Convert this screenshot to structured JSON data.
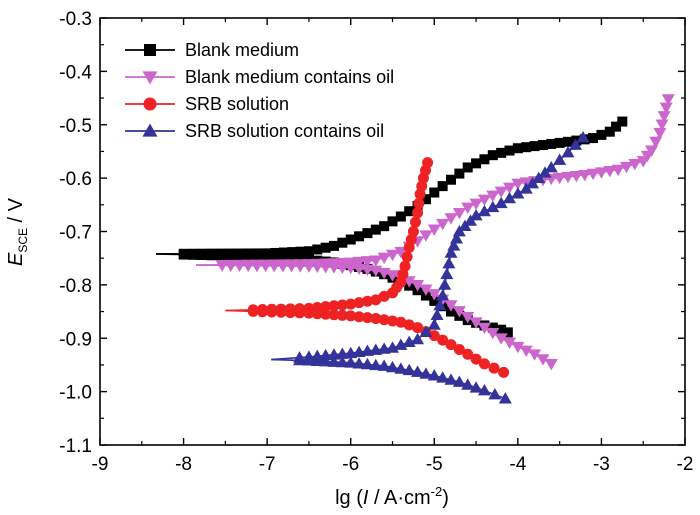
{
  "chart_data": {
    "type": "line",
    "title": "",
    "xlabel": "lg (I / A·cm⁻²)",
    "xlabel_parts": {
      "pre": "lg (",
      "var": "I",
      "unit": " / A·cm",
      "exp": "-2",
      "post": ")"
    },
    "ylabel": "E_SCE / V",
    "ylabel_parts": {
      "var": "E",
      "sub": "SCE",
      "unit": " / V"
    },
    "xlim": [
      -9,
      -2
    ],
    "ylim": [
      -1.1,
      -0.3
    ],
    "xticks": [
      -9,
      -8,
      -7,
      -6,
      -5,
      -4,
      -3,
      -2
    ],
    "xtick_labels": [
      "-9",
      "-8",
      "-7",
      "-6",
      "-5",
      "-4",
      "-3",
      "-2"
    ],
    "yticks": [
      -1.1,
      -1.0,
      -0.9,
      -0.8,
      -0.7,
      -0.6,
      -0.5,
      -0.4,
      -0.3
    ],
    "ytick_labels": [
      "-1.1",
      "-1.0",
      "-0.9",
      "-0.8",
      "-0.7",
      "-0.6",
      "-0.5",
      "-0.4",
      "-0.3"
    ],
    "grid": false,
    "legend_position": "top-left",
    "series": [
      {
        "name": "Blank medium",
        "color": "#000000",
        "marker": "square",
        "anodic": [
          [
            -8.33,
            -0.742
          ],
          [
            -7,
            -0.741
          ],
          [
            -6.5,
            -0.737
          ],
          [
            -6.2,
            -0.727
          ],
          [
            -6.0,
            -0.715
          ],
          [
            -5.8,
            -0.703
          ],
          [
            -5.6,
            -0.69
          ],
          [
            -5.4,
            -0.672
          ],
          [
            -5.2,
            -0.652
          ],
          [
            -5.0,
            -0.627
          ],
          [
            -4.8,
            -0.603
          ],
          [
            -4.6,
            -0.58
          ],
          [
            -4.3,
            -0.557
          ],
          [
            -4.0,
            -0.544
          ],
          [
            -3.7,
            -0.538
          ],
          [
            -3.4,
            -0.532
          ],
          [
            -3.1,
            -0.525
          ],
          [
            -2.9,
            -0.513
          ],
          [
            -2.75,
            -0.494
          ]
        ],
        "cathodic": [
          [
            -8.33,
            -0.742
          ],
          [
            -7,
            -0.747
          ],
          [
            -6.5,
            -0.753
          ],
          [
            -6.2,
            -0.758
          ],
          [
            -6.0,
            -0.763
          ],
          [
            -5.8,
            -0.77
          ],
          [
            -5.6,
            -0.78
          ],
          [
            -5.4,
            -0.793
          ],
          [
            -5.2,
            -0.81
          ],
          [
            -5.0,
            -0.83
          ],
          [
            -4.8,
            -0.85
          ],
          [
            -4.6,
            -0.866
          ],
          [
            -4.4,
            -0.876
          ],
          [
            -4.2,
            -0.884
          ],
          [
            -4.12,
            -0.889
          ]
        ]
      },
      {
        "name": "Blank medium contains oil",
        "color": "#cc66cc",
        "marker": "triangle-down",
        "anodic": [
          [
            -7.85,
            -0.763
          ],
          [
            -6.5,
            -0.761
          ],
          [
            -6.0,
            -0.758
          ],
          [
            -5.7,
            -0.754
          ],
          [
            -5.4,
            -0.738
          ],
          [
            -5.2,
            -0.718
          ],
          [
            -5.0,
            -0.696
          ],
          [
            -4.8,
            -0.675
          ],
          [
            -4.6,
            -0.655
          ],
          [
            -4.4,
            -0.64
          ],
          [
            -4.2,
            -0.625
          ],
          [
            -4.0,
            -0.61
          ],
          [
            -3.6,
            -0.601
          ],
          [
            -3.2,
            -0.594
          ],
          [
            -2.8,
            -0.584
          ],
          [
            -2.5,
            -0.568
          ],
          [
            -2.4,
            -0.548
          ],
          [
            -2.3,
            -0.515
          ],
          [
            -2.2,
            -0.452
          ]
        ],
        "cathodic": [
          [
            -7.85,
            -0.763
          ],
          [
            -6.5,
            -0.765
          ],
          [
            -6.0,
            -0.768
          ],
          [
            -5.7,
            -0.773
          ],
          [
            -5.4,
            -0.786
          ],
          [
            -5.2,
            -0.8
          ],
          [
            -5.0,
            -0.817
          ],
          [
            -4.8,
            -0.838
          ],
          [
            -4.6,
            -0.86
          ],
          [
            -4.4,
            -0.88
          ],
          [
            -4.2,
            -0.9
          ],
          [
            -4.0,
            -0.916
          ],
          [
            -3.8,
            -0.93
          ],
          [
            -3.6,
            -0.948
          ]
        ]
      },
      {
        "name": "SRB solution",
        "color": "#ee2222",
        "marker": "circle",
        "anodic": [
          [
            -7.5,
            -0.848
          ],
          [
            -6.5,
            -0.844
          ],
          [
            -6.0,
            -0.836
          ],
          [
            -5.7,
            -0.828
          ],
          [
            -5.5,
            -0.815
          ],
          [
            -5.4,
            -0.795
          ],
          [
            -5.35,
            -0.765
          ],
          [
            -5.3,
            -0.73
          ],
          [
            -5.25,
            -0.7
          ],
          [
            -5.2,
            -0.665
          ],
          [
            -5.17,
            -0.63
          ],
          [
            -5.13,
            -0.6
          ],
          [
            -5.08,
            -0.571
          ]
        ],
        "cathodic": [
          [
            -7.5,
            -0.848
          ],
          [
            -6.5,
            -0.853
          ],
          [
            -6.0,
            -0.858
          ],
          [
            -5.7,
            -0.863
          ],
          [
            -5.4,
            -0.87
          ],
          [
            -5.2,
            -0.88
          ],
          [
            -5.0,
            -0.895
          ],
          [
            -4.8,
            -0.912
          ],
          [
            -4.6,
            -0.93
          ],
          [
            -4.4,
            -0.948
          ],
          [
            -4.17,
            -0.964
          ]
        ]
      },
      {
        "name": "SRB solution contains oil",
        "color": "#333399",
        "marker": "triangle-up",
        "anodic": [
          [
            -6.95,
            -0.94
          ],
          [
            -6.5,
            -0.935
          ],
          [
            -6.0,
            -0.928
          ],
          [
            -5.5,
            -0.918
          ],
          [
            -5.2,
            -0.902
          ],
          [
            -5.0,
            -0.875
          ],
          [
            -4.9,
            -0.82
          ],
          [
            -4.85,
            -0.78
          ],
          [
            -4.8,
            -0.74
          ],
          [
            -4.7,
            -0.7
          ],
          [
            -4.5,
            -0.67
          ],
          [
            -4.2,
            -0.647
          ],
          [
            -3.9,
            -0.62
          ],
          [
            -3.6,
            -0.58
          ],
          [
            -3.4,
            -0.552
          ],
          [
            -3.22,
            -0.524
          ]
        ],
        "cathodic": [
          [
            -6.95,
            -0.94
          ],
          [
            -6.5,
            -0.942
          ],
          [
            -6.0,
            -0.946
          ],
          [
            -5.6,
            -0.952
          ],
          [
            -5.3,
            -0.96
          ],
          [
            -5.0,
            -0.97
          ],
          [
            -4.7,
            -0.982
          ],
          [
            -4.4,
            -0.998
          ],
          [
            -4.15,
            -1.013
          ]
        ]
      }
    ]
  }
}
